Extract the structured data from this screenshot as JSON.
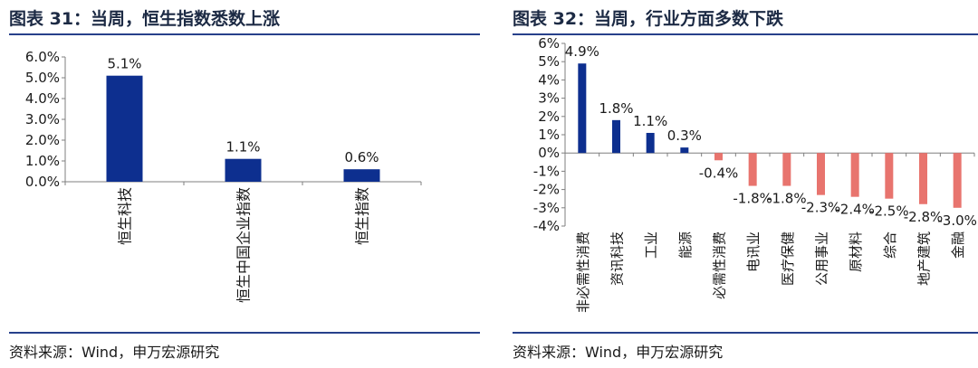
{
  "colors": {
    "primary_bar": "#0d2f8f",
    "negative_bar": "#e8746e",
    "rule": "#27408b",
    "axis": "#7f7f7f"
  },
  "left": {
    "title": "图表 31：当周，恒生指数悉数上涨",
    "source": "资料来源：Wind，申万宏源研究"
  },
  "right": {
    "title": "图表 32：当周，行业方面多数下跌",
    "source": "资料来源：Wind，申万宏源研究"
  },
  "chart_data": [
    {
      "type": "bar",
      "categories": [
        "恒生科技",
        "恒生中国企业指数",
        "恒生指数"
      ],
      "values": [
        5.1,
        1.1,
        0.6
      ],
      "data_labels": [
        "5.1%",
        "1.1%",
        "0.6%"
      ],
      "ylim": [
        0,
        6
      ],
      "yticks": [
        0,
        1,
        2,
        3,
        4,
        5,
        6
      ],
      "ytick_labels": [
        "0.0%",
        "1.0%",
        "2.0%",
        "3.0%",
        "4.0%",
        "5.0%",
        "6.0%"
      ],
      "grid": false,
      "legend": "none"
    },
    {
      "type": "bar",
      "categories": [
        "非必需性消费",
        "资讯科技",
        "工业",
        "能源",
        "必需性消费",
        "电讯业",
        "医疗保健",
        "公用事业",
        "原材料",
        "综合",
        "地产建筑",
        "金融"
      ],
      "values": [
        4.9,
        1.8,
        1.1,
        0.3,
        -0.4,
        -1.8,
        -1.8,
        -2.3,
        -2.4,
        -2.5,
        -2.8,
        -3.0
      ],
      "data_labels": [
        "4.9%",
        "1.8%",
        "1.1%",
        "0.3%",
        "-0.4%",
        "-1.8%",
        "-1.8%",
        "-2.3%",
        "-2.4%",
        "-2.5%",
        "-2.8%",
        "-3.0%"
      ],
      "ylim": [
        -4,
        6
      ],
      "yticks": [
        -4,
        -3,
        -2,
        -1,
        0,
        1,
        2,
        3,
        4,
        5,
        6
      ],
      "ytick_labels": [
        "-4%",
        "-3%",
        "-2%",
        "-1%",
        "0%",
        "1%",
        "2%",
        "3%",
        "4%",
        "5%",
        "6%"
      ],
      "grid": false,
      "legend": "none"
    }
  ]
}
